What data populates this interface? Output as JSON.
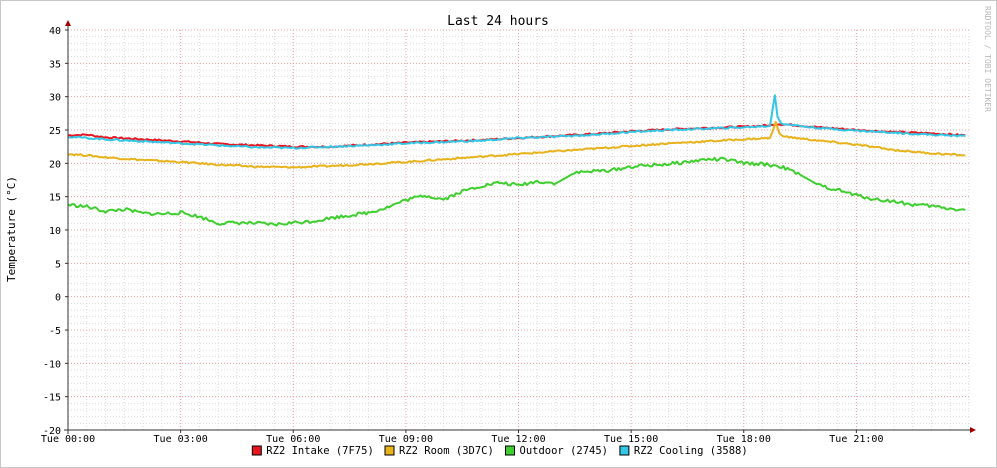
{
  "chart_data": {
    "type": "line",
    "title": "Last 24 hours",
    "ylabel": "Temperature (°C)",
    "xlabel": "",
    "watermark": "RRDTOOL / TOBI OETIKER",
    "ylim": [
      -20,
      40
    ],
    "yticks": [
      40,
      35,
      30,
      25,
      20,
      15,
      10,
      5,
      0,
      -5,
      -10,
      -15,
      -20
    ],
    "y_minor_step": 1,
    "xlim_hours": [
      0,
      24
    ],
    "xticks": [
      {
        "hour": 0,
        "label": "Tue 00:00"
      },
      {
        "hour": 3,
        "label": "Tue 03:00"
      },
      {
        "hour": 6,
        "label": "Tue 06:00"
      },
      {
        "hour": 9,
        "label": "Tue 09:00"
      },
      {
        "hour": 12,
        "label": "Tue 12:00"
      },
      {
        "hour": 15,
        "label": "Tue 15:00"
      },
      {
        "hour": 18,
        "label": "Tue 18:00"
      },
      {
        "hour": 21,
        "label": "Tue 21:00"
      }
    ],
    "x_minor_step_hours": 0.5,
    "grid": true,
    "legend_position": "bottom",
    "series": [
      {
        "name": "RZ2 Intake (7F75)",
        "color": "#e8141e",
        "points": [
          [
            0,
            24.2
          ],
          [
            0.5,
            24.3
          ],
          [
            1,
            23.9
          ],
          [
            2,
            23.6
          ],
          [
            3,
            23.3
          ],
          [
            4,
            22.9
          ],
          [
            5,
            22.7
          ],
          [
            6,
            22.5
          ],
          [
            7,
            22.5
          ],
          [
            8,
            22.8
          ],
          [
            9,
            23.1
          ],
          [
            10,
            23.3
          ],
          [
            11,
            23.5
          ],
          [
            12,
            23.8
          ],
          [
            13,
            24.1
          ],
          [
            14,
            24.4
          ],
          [
            15,
            24.8
          ],
          [
            16,
            25.1
          ],
          [
            17,
            25.3
          ],
          [
            18,
            25.5
          ],
          [
            18.7,
            25.7
          ],
          [
            18.9,
            25.9
          ],
          [
            19.2,
            25.8
          ],
          [
            20,
            25.4
          ],
          [
            21,
            25.0
          ],
          [
            22,
            24.7
          ],
          [
            23,
            24.5
          ],
          [
            23.9,
            24.2
          ]
        ]
      },
      {
        "name": "RZ2 Room (3D7C)",
        "color": "#e8b21b",
        "points": [
          [
            0,
            21.4
          ],
          [
            0.5,
            21.2
          ],
          [
            1,
            20.9
          ],
          [
            2,
            20.5
          ],
          [
            3,
            20.2
          ],
          [
            4,
            19.8
          ],
          [
            5,
            19.5
          ],
          [
            6,
            19.4
          ],
          [
            7,
            19.6
          ],
          [
            8,
            19.9
          ],
          [
            9,
            20.2
          ],
          [
            10,
            20.6
          ],
          [
            11,
            21.0
          ],
          [
            12,
            21.4
          ],
          [
            13,
            21.8
          ],
          [
            14,
            22.2
          ],
          [
            15,
            22.6
          ],
          [
            16,
            23.0
          ],
          [
            17,
            23.3
          ],
          [
            18,
            23.6
          ],
          [
            18.7,
            23.8
          ],
          [
            18.8,
            25.2
          ],
          [
            18.85,
            26.2
          ],
          [
            18.95,
            24.5
          ],
          [
            19.1,
            24.0
          ],
          [
            20,
            23.4
          ],
          [
            21,
            22.8
          ],
          [
            22,
            22.0
          ],
          [
            23,
            21.5
          ],
          [
            23.9,
            21.2
          ]
        ]
      },
      {
        "name": "Outdoor (2745)",
        "color": "#3ecf2e",
        "points": [
          [
            0,
            13.8
          ],
          [
            0.5,
            13.5
          ],
          [
            1,
            12.8
          ],
          [
            1.5,
            13.1
          ],
          [
            2,
            12.5
          ],
          [
            2.5,
            12.4
          ],
          [
            3,
            12.6
          ],
          [
            3.5,
            12.0
          ],
          [
            4,
            11.0
          ],
          [
            4.5,
            11.1
          ],
          [
            5,
            11.0
          ],
          [
            5.5,
            10.8
          ],
          [
            6,
            11.1
          ],
          [
            6.5,
            11.3
          ],
          [
            7,
            11.8
          ],
          [
            7.5,
            12.2
          ],
          [
            8,
            12.6
          ],
          [
            8.5,
            13.4
          ],
          [
            9,
            14.5
          ],
          [
            9.5,
            15.2
          ],
          [
            10,
            14.6
          ],
          [
            10.5,
            15.8
          ],
          [
            11,
            16.6
          ],
          [
            11.5,
            17.1
          ],
          [
            12,
            16.7
          ],
          [
            12.5,
            17.3
          ],
          [
            13,
            17.0
          ],
          [
            13.5,
            18.6
          ],
          [
            14,
            18.8
          ],
          [
            14.5,
            19.0
          ],
          [
            15,
            19.5
          ],
          [
            15.5,
            19.7
          ],
          [
            16,
            19.9
          ],
          [
            16.5,
            20.2
          ],
          [
            17,
            20.6
          ],
          [
            17.5,
            20.6
          ],
          [
            18,
            20.0
          ],
          [
            18.5,
            19.9
          ],
          [
            19,
            19.5
          ],
          [
            19.5,
            18.3
          ],
          [
            20,
            16.7
          ],
          [
            20.5,
            16.0
          ],
          [
            21,
            15.2
          ],
          [
            21.5,
            14.6
          ],
          [
            22,
            14.3
          ],
          [
            22.5,
            13.8
          ],
          [
            23,
            13.6
          ],
          [
            23.5,
            13.2
          ],
          [
            23.9,
            13.0
          ]
        ]
      },
      {
        "name": "RZ2 Cooling (3588)",
        "color": "#33c7e6",
        "points": [
          [
            0,
            24.0
          ],
          [
            0.5,
            23.8
          ],
          [
            1,
            23.6
          ],
          [
            2,
            23.3
          ],
          [
            3,
            23.0
          ],
          [
            4,
            22.7
          ],
          [
            5,
            22.4
          ],
          [
            6,
            22.3
          ],
          [
            7,
            22.5
          ],
          [
            8,
            22.7
          ],
          [
            9,
            23.0
          ],
          [
            10,
            23.2
          ],
          [
            11,
            23.4
          ],
          [
            12,
            23.8
          ],
          [
            13,
            24.0
          ],
          [
            14,
            24.3
          ],
          [
            15,
            24.7
          ],
          [
            16,
            25.0
          ],
          [
            17,
            25.2
          ],
          [
            18,
            25.4
          ],
          [
            18.7,
            25.6
          ],
          [
            18.78,
            28.5
          ],
          [
            18.83,
            30.2
          ],
          [
            18.9,
            27.0
          ],
          [
            19.0,
            26.0
          ],
          [
            19.5,
            25.6
          ],
          [
            20,
            25.3
          ],
          [
            21,
            24.9
          ],
          [
            22,
            24.6
          ],
          [
            23,
            24.3
          ],
          [
            23.9,
            24.1
          ]
        ]
      }
    ]
  }
}
